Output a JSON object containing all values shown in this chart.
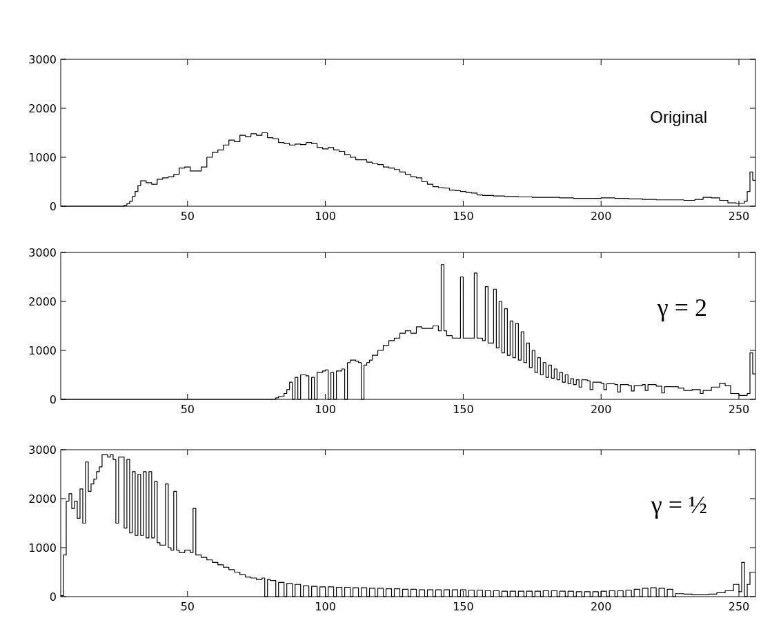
{
  "chart_data": [
    {
      "type": "step",
      "xlim": [
        4,
        256
      ],
      "xticks": [
        50,
        100,
        150,
        200,
        250
      ],
      "ylim": [
        0,
        3000
      ],
      "yticks": [
        0,
        1000,
        2000,
        3000
      ],
      "annotations": [
        "Original"
      ],
      "x": [
        4,
        27,
        28,
        29,
        30,
        31,
        32,
        33,
        35,
        37,
        39,
        41,
        43,
        45,
        47,
        49,
        51,
        53,
        55,
        57,
        59,
        61,
        63,
        65,
        67,
        69,
        71,
        73,
        75,
        77,
        79,
        81,
        83,
        85,
        87,
        89,
        91,
        93,
        95,
        97,
        99,
        101,
        103,
        105,
        107,
        109,
        111,
        113,
        115,
        117,
        119,
        121,
        123,
        125,
        127,
        129,
        131,
        133,
        135,
        137,
        139,
        141,
        143,
        145,
        147,
        149,
        151,
        153,
        155,
        157,
        159,
        161,
        165,
        170,
        175,
        180,
        185,
        190,
        195,
        200,
        205,
        210,
        215,
        220,
        225,
        230,
        234,
        237,
        240,
        243,
        246,
        249,
        252,
        253,
        254,
        255,
        256
      ],
      "values": [
        0,
        20,
        50,
        100,
        200,
        300,
        420,
        520,
        480,
        450,
        550,
        580,
        600,
        650,
        780,
        800,
        720,
        720,
        800,
        1000,
        1100,
        1150,
        1250,
        1350,
        1320,
        1450,
        1420,
        1480,
        1450,
        1500,
        1400,
        1380,
        1300,
        1280,
        1250,
        1270,
        1260,
        1300,
        1280,
        1200,
        1170,
        1200,
        1150,
        1120,
        1050,
        1000,
        950,
        950,
        900,
        870,
        850,
        800,
        780,
        750,
        700,
        650,
        600,
        580,
        500,
        450,
        400,
        380,
        370,
        330,
        320,
        300,
        280,
        270,
        230,
        220,
        220,
        210,
        200,
        190,
        180,
        180,
        170,
        160,
        160,
        170,
        160,
        150,
        140,
        130,
        130,
        120,
        140,
        180,
        170,
        120,
        70,
        60,
        100,
        300,
        700,
        530,
        530
      ]
    },
    {
      "type": "step",
      "xlim": [
        4,
        256
      ],
      "xticks": [
        50,
        100,
        150,
        200,
        250
      ],
      "ylim": [
        0,
        3000
      ],
      "yticks": [
        0,
        1000,
        2000,
        3000
      ],
      "annotations": [
        "γ = 2"
      ],
      "x": [
        4,
        82,
        83,
        85,
        86,
        87,
        88,
        89,
        90,
        91,
        93,
        94,
        95,
        96,
        97,
        99,
        100,
        101,
        102,
        103,
        104,
        106,
        107,
        108,
        109,
        111,
        112,
        113,
        114,
        115,
        116,
        117,
        119,
        121,
        123,
        125,
        127,
        129,
        131,
        133,
        135,
        137,
        139,
        141,
        142,
        143,
        144,
        146,
        148,
        149,
        150,
        152,
        154,
        155,
        157,
        158,
        159,
        161,
        162,
        163,
        164,
        165,
        166,
        167,
        168,
        169,
        170,
        171,
        172,
        173,
        174,
        175,
        176,
        177,
        178,
        179,
        180,
        181,
        182,
        183,
        184,
        185,
        186,
        187,
        188,
        189,
        190,
        191,
        192,
        193,
        195,
        196,
        197,
        200,
        201,
        202,
        205,
        206,
        207,
        210,
        211,
        212,
        215,
        216,
        217,
        220,
        222,
        223,
        228,
        230,
        233,
        236,
        237,
        240,
        243,
        245,
        247,
        250,
        253,
        254,
        255,
        256
      ],
      "values": [
        0,
        30,
        60,
        120,
        200,
        350,
        0,
        450,
        0,
        500,
        480,
        0,
        450,
        0,
        550,
        580,
        600,
        0,
        550,
        0,
        580,
        620,
        0,
        750,
        800,
        780,
        750,
        0,
        700,
        750,
        800,
        900,
        1000,
        1100,
        1200,
        1250,
        1350,
        1400,
        1350,
        1480,
        1450,
        1450,
        1500,
        1400,
        2750,
        1400,
        1300,
        1250,
        1250,
        2500,
        1250,
        1250,
        2580,
        1250,
        1200,
        2300,
        1150,
        2250,
        1050,
        2000,
        950,
        1850,
        900,
        1600,
        850,
        1550,
        800,
        1380,
        750,
        1150,
        650,
        1000,
        550,
        850,
        500,
        750,
        450,
        700,
        430,
        620,
        400,
        550,
        350,
        500,
        320,
        420,
        300,
        400,
        250,
        400,
        380,
        200,
        350,
        330,
        200,
        320,
        300,
        150,
        300,
        280,
        170,
        280,
        300,
        180,
        300,
        270,
        130,
        260,
        230,
        180,
        200,
        120,
        180,
        250,
        330,
        280,
        120,
        80,
        120,
        950,
        520,
        520
      ]
    },
    {
      "type": "step",
      "xlim": [
        4,
        256
      ],
      "xticks": [
        50,
        100,
        150,
        200,
        250
      ],
      "ylim": [
        0,
        3000
      ],
      "yticks": [
        0,
        1000,
        2000,
        3000
      ],
      "annotations": [
        "γ = ½"
      ],
      "x": [
        4,
        5,
        6,
        7,
        8,
        9,
        10,
        11,
        12,
        13,
        14,
        15,
        16,
        17,
        18,
        19,
        21,
        22,
        23,
        24,
        25,
        27,
        28,
        29,
        30,
        31,
        32,
        33,
        34,
        35,
        36,
        37,
        38,
        39,
        40,
        42,
        43,
        44,
        45,
        46,
        47,
        49,
        51,
        52,
        53,
        55,
        57,
        59,
        61,
        63,
        65,
        67,
        69,
        71,
        73,
        75,
        77,
        78,
        79,
        80,
        82,
        83,
        85,
        86,
        88,
        89,
        91,
        92,
        94,
        95,
        97,
        98,
        100,
        101,
        103,
        104,
        106,
        107,
        109,
        110,
        112,
        113,
        115,
        116,
        118,
        119,
        121,
        122,
        124,
        125,
        127,
        128,
        130,
        131,
        133,
        134,
        136,
        137,
        139,
        140,
        142,
        143,
        145,
        146,
        148,
        149,
        151,
        152,
        154,
        155,
        157,
        158,
        160,
        161,
        163,
        164,
        166,
        167,
        169,
        170,
        172,
        173,
        175,
        176,
        178,
        179,
        181,
        182,
        184,
        185,
        187,
        188,
        190,
        191,
        193,
        194,
        196,
        197,
        199,
        200,
        202,
        203,
        205,
        206,
        208,
        209,
        211,
        212,
        214,
        215,
        217,
        218,
        220,
        221,
        223,
        224,
        226,
        227,
        230,
        233,
        236,
        239,
        242,
        245,
        248,
        250,
        251,
        252,
        253,
        254,
        255,
        256
      ],
      "values": [
        20,
        850,
        1950,
        2100,
        1800,
        1950,
        1600,
        2200,
        1500,
        2750,
        2150,
        2300,
        2400,
        2550,
        2650,
        2900,
        2850,
        2900,
        2800,
        1500,
        2850,
        1400,
        2800,
        1300,
        2550,
        1250,
        2500,
        1250,
        2550,
        1200,
        2550,
        1200,
        2350,
        1100,
        1050,
        2300,
        1000,
        950,
        2150,
        950,
        900,
        950,
        900,
        1800,
        850,
        800,
        750,
        700,
        650,
        600,
        550,
        500,
        450,
        400,
        380,
        350,
        380,
        0,
        350,
        330,
        0,
        290,
        0,
        270,
        0,
        250,
        0,
        220,
        0,
        210,
        0,
        200,
        0,
        200,
        0,
        190,
        0,
        190,
        0,
        180,
        0,
        180,
        0,
        170,
        0,
        170,
        0,
        160,
        0,
        160,
        0,
        150,
        0,
        150,
        0,
        140,
        0,
        140,
        0,
        140,
        0,
        140,
        0,
        140,
        0,
        140,
        0,
        130,
        0,
        130,
        0,
        120,
        0,
        120,
        0,
        110,
        0,
        110,
        0,
        110,
        0,
        110,
        0,
        110,
        0,
        120,
        0,
        120,
        0,
        110,
        0,
        110,
        0,
        100,
        0,
        100,
        0,
        100,
        0,
        110,
        0,
        120,
        0,
        120,
        0,
        130,
        0,
        150,
        0,
        170,
        0,
        180,
        0,
        170,
        0,
        150,
        0,
        60,
        50,
        40,
        40,
        50,
        80,
        120,
        250,
        100,
        700,
        0,
        250,
        500,
        500,
        500
      ]
    }
  ]
}
